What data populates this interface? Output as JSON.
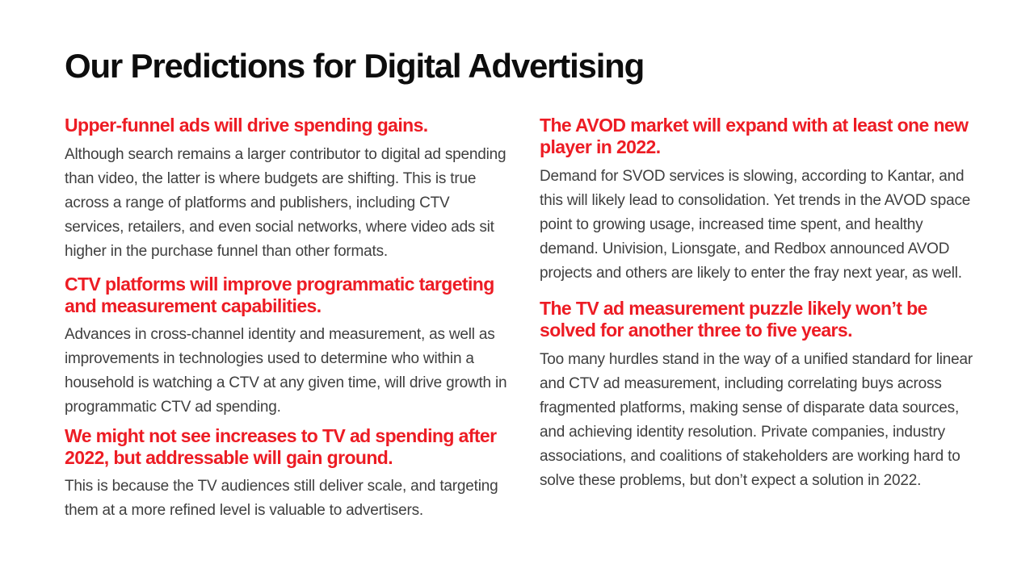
{
  "slide": {
    "title": "Our Predictions for Digital Advertising",
    "colors": {
      "accent": "#ED1C24",
      "title": "#0D0D0D",
      "body": "#3F3F3F",
      "background": "#FFFFFF"
    },
    "sections": {
      "left": [
        {
          "heading": "Upper-funnel ads will drive spending gains.",
          "body": "Although search remains a larger contributor to digital ad spending than video, the latter is where budgets are shifting. This is true across a range of platforms and publishers, including CTV services, retailers, and even social networks, where video ads sit higher in the purchase funnel than other formats."
        },
        {
          "heading": "CTV platforms will improve programmatic targeting and measurement capabilities.",
          "body": "Advances in cross-channel identity and measurement, as well as improvements in technologies used to determine who within a household is watching a CTV at any given time, will drive growth in programmatic CTV ad spending."
        },
        {
          "heading": "We might not see increases to TV ad spending after 2022, but addressable will gain ground.",
          "body": "This is because the TV audiences still deliver scale, and targeting them at a more refined level is valuable to advertisers."
        }
      ],
      "right": [
        {
          "heading": "The AVOD market will expand with at least one new player in 2022.",
          "body": "Demand for SVOD services is slowing, according to Kantar, and this will likely lead to consolidation. Yet trends in the AVOD space point to growing usage, increased time spent, and healthy demand. Univision, Lionsgate, and Redbox announced AVOD projects and others are likely to enter the fray next year, as well."
        },
        {
          "heading": "The TV ad measurement puzzle likely won’t be solved for another three to five years.",
          "body": "Too many hurdles stand in the way of a unified standard for linear and CTV ad measurement, including correlating buys across fragmented platforms, making sense of disparate data sources, and achieving identity resolution. Private companies, industry associations, and coalitions of stakeholders are working hard to solve these problems, but don’t expect a solution in 2022."
        }
      ]
    }
  }
}
